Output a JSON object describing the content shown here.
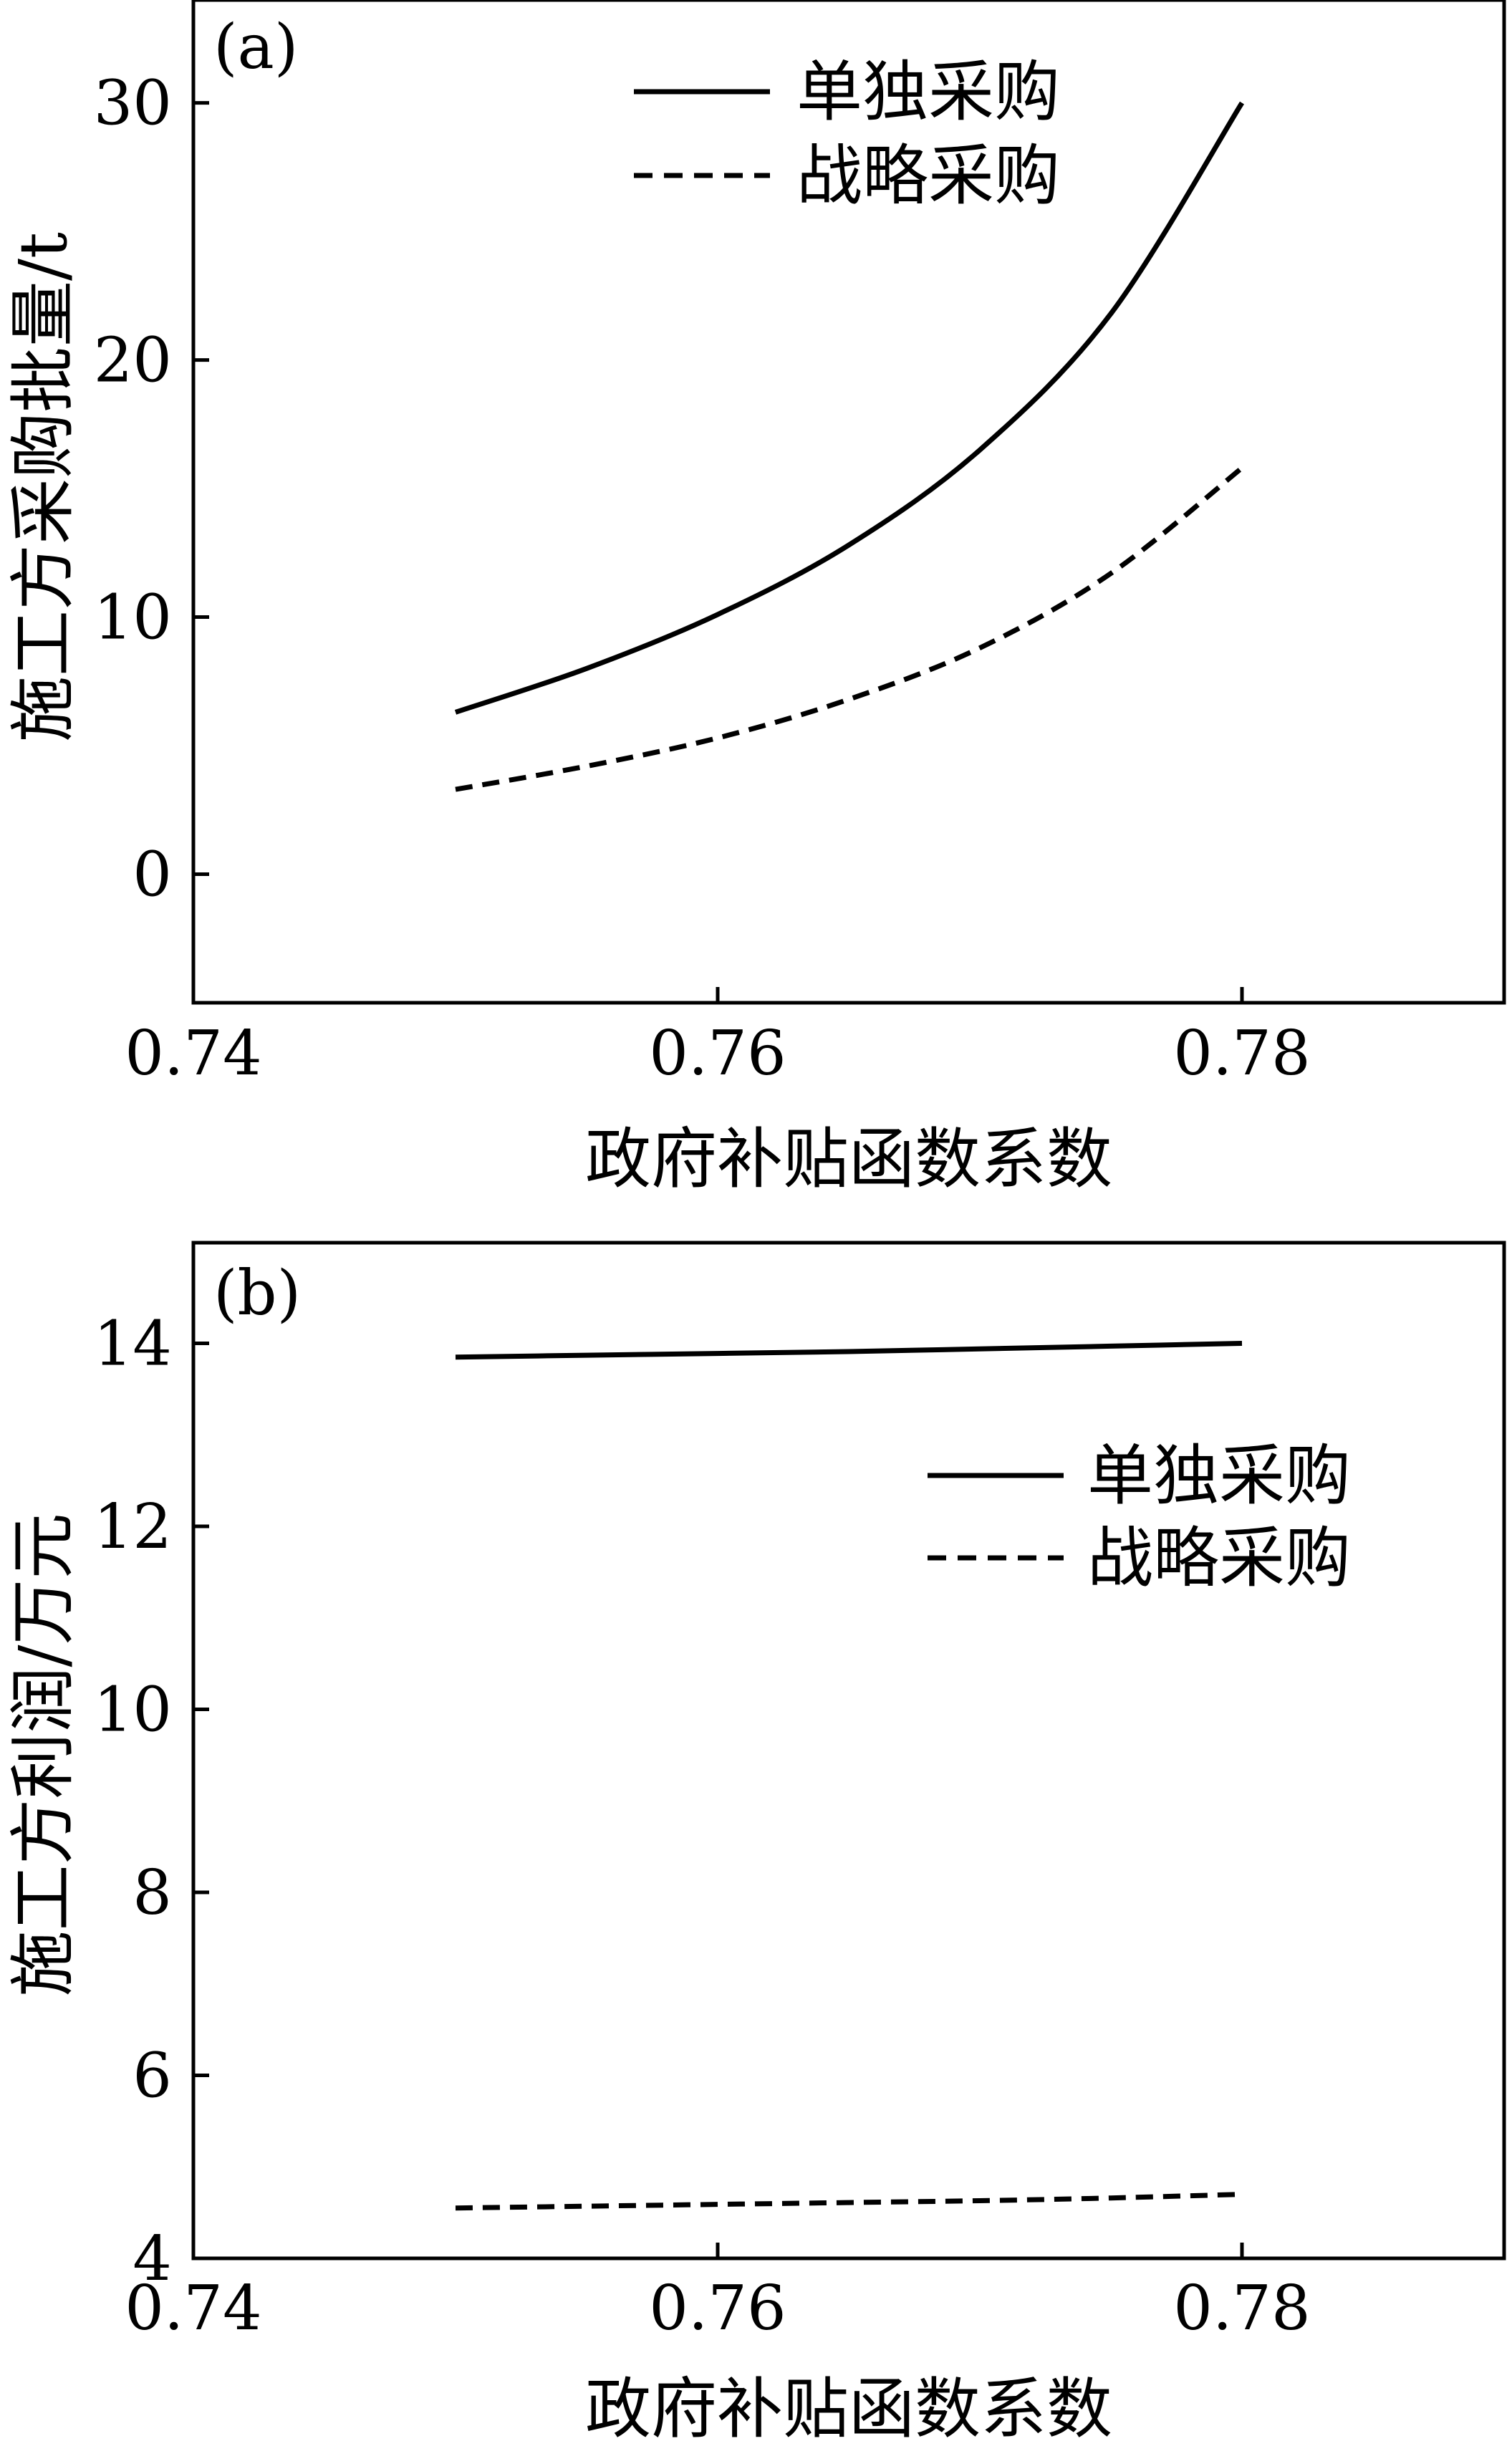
{
  "chart_data": [
    {
      "type": "line",
      "panel_label": "(a)",
      "xlabel": "政府补贴函数系数",
      "ylabel": "施工方采购批量/t",
      "xlim": [
        0.74,
        0.79
      ],
      "ylim": [
        -5,
        34
      ],
      "xticks": [
        0.74,
        0.76,
        0.78
      ],
      "xtick_labels": [
        "0.74",
        "0.76",
        "0.78"
      ],
      "yticks": [
        0,
        10,
        20,
        30
      ],
      "ytick_labels": [
        "0",
        "10",
        "20",
        "30"
      ],
      "grid": false,
      "legend_position": "top-center",
      "x": [
        0.75,
        0.755,
        0.76,
        0.765,
        0.77,
        0.775,
        0.78
      ],
      "series": [
        {
          "name": "单独采购",
          "style": "solid",
          "values": [
            6.3,
            8.0,
            10.1,
            12.8,
            16.5,
            21.8,
            30.0
          ]
        },
        {
          "name": "战略采购",
          "style": "dashed",
          "values": [
            3.3,
            4.2,
            5.3,
            6.8,
            8.8,
            11.7,
            15.8
          ]
        }
      ]
    },
    {
      "type": "line",
      "panel_label": "(b)",
      "xlabel": "政府补贴函数系数",
      "ylabel": "施工方利润/万元",
      "xlim": [
        0.74,
        0.79
      ],
      "ylim": [
        4,
        15.1
      ],
      "xticks": [
        0.74,
        0.76,
        0.78
      ],
      "xtick_labels": [
        "0.74",
        "0.76",
        "0.78"
      ],
      "yticks": [
        4,
        6,
        8,
        10,
        12,
        14
      ],
      "ytick_labels": [
        "4",
        "6",
        "8",
        "10",
        "12",
        "14"
      ],
      "grid": false,
      "legend_position": "upper-right",
      "x": [
        0.75,
        0.755,
        0.76,
        0.765,
        0.77,
        0.775,
        0.78
      ],
      "series": [
        {
          "name": "单独采购",
          "style": "solid",
          "values": [
            13.85,
            13.87,
            13.89,
            13.91,
            13.94,
            13.97,
            14.0
          ]
        },
        {
          "name": "战略采购",
          "style": "dashed",
          "values": [
            4.55,
            4.57,
            4.59,
            4.61,
            4.63,
            4.66,
            4.7
          ]
        }
      ]
    }
  ]
}
